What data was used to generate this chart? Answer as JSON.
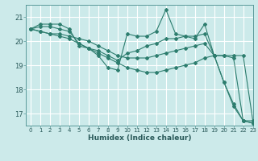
{
  "xlabel": "Humidex (Indice chaleur)",
  "background_color": "#cceaea",
  "grid_color": "#ffffff",
  "line_color": "#2d7d6e",
  "xlim": [
    -0.5,
    23
  ],
  "ylim": [
    16.5,
    21.5
  ],
  "yticks": [
    17,
    18,
    19,
    20,
    21
  ],
  "xticks": [
    0,
    1,
    2,
    3,
    4,
    5,
    6,
    7,
    8,
    9,
    10,
    11,
    12,
    13,
    14,
    15,
    16,
    17,
    18,
    19,
    20,
    21,
    22,
    23
  ],
  "lines": [
    {
      "x": [
        0,
        1,
        2,
        3,
        4,
        5,
        6,
        7,
        8,
        9,
        10,
        11,
        12,
        13,
        14,
        15,
        16,
        17,
        18,
        19,
        20,
        21,
        22,
        23
      ],
      "y": [
        20.5,
        20.7,
        20.7,
        20.7,
        20.5,
        19.8,
        19.7,
        19.4,
        18.9,
        18.8,
        20.3,
        20.2,
        20.2,
        20.4,
        21.3,
        20.3,
        20.2,
        20.1,
        20.7,
        19.4,
        18.3,
        17.3,
        16.7,
        16.7
      ]
    },
    {
      "x": [
        0,
        1,
        2,
        3,
        4,
        5,
        6,
        7,
        8,
        9,
        10,
        11,
        12,
        13,
        14,
        15,
        16,
        17,
        18,
        19,
        20,
        21,
        22,
        23
      ],
      "y": [
        20.5,
        20.6,
        20.6,
        20.5,
        20.4,
        19.9,
        19.7,
        19.6,
        19.4,
        19.2,
        19.5,
        19.6,
        19.8,
        19.9,
        20.1,
        20.1,
        20.2,
        20.2,
        20.3,
        19.4,
        19.4,
        19.4,
        19.4,
        16.7
      ]
    },
    {
      "x": [
        0,
        1,
        2,
        3,
        4,
        5,
        6,
        7,
        8,
        9,
        10,
        11,
        12,
        13,
        14,
        15,
        16,
        17,
        18,
        19,
        20,
        21,
        22,
        23
      ],
      "y": [
        20.5,
        20.4,
        20.3,
        20.3,
        20.2,
        20.1,
        20.0,
        19.8,
        19.6,
        19.4,
        19.3,
        19.3,
        19.3,
        19.4,
        19.5,
        19.6,
        19.7,
        19.8,
        19.9,
        19.4,
        19.4,
        19.3,
        16.7,
        16.6
      ]
    },
    {
      "x": [
        0,
        1,
        2,
        3,
        4,
        5,
        6,
        7,
        8,
        9,
        10,
        11,
        12,
        13,
        14,
        15,
        16,
        17,
        18,
        19,
        20,
        21,
        22,
        23
      ],
      "y": [
        20.5,
        20.4,
        20.3,
        20.2,
        20.1,
        19.9,
        19.7,
        19.5,
        19.3,
        19.1,
        18.9,
        18.8,
        18.7,
        18.7,
        18.8,
        18.9,
        19.0,
        19.1,
        19.3,
        19.4,
        18.3,
        17.4,
        16.7,
        16.6
      ]
    }
  ]
}
